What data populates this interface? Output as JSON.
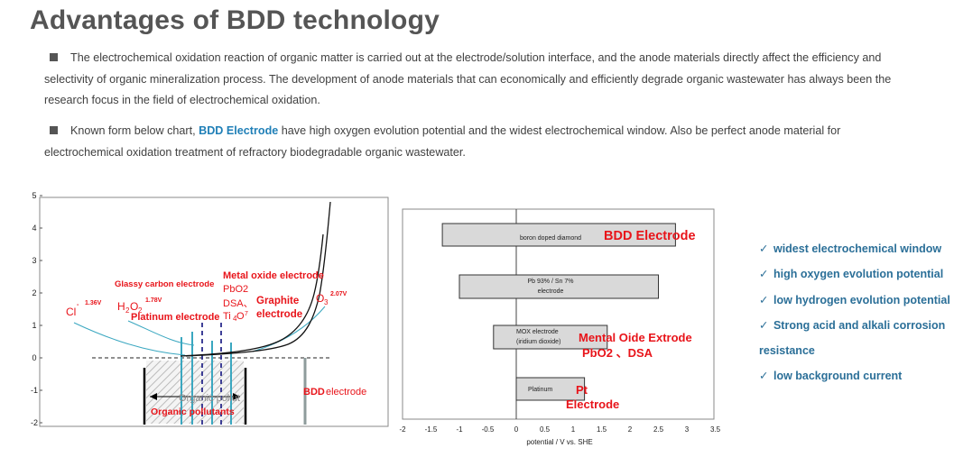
{
  "title": "Advantages of BDD technology",
  "paragraph1": "The electrochemical oxidation reaction of organic matter is carried out at the electrode/solution interface, and the anode materials directly affect the efficiency and selectivity of organic mineralization process. The development of anode materials that can economically and efficiently degrade organic wastewater has always been the research focus in the field of electrochemical oxidation.",
  "paragraph2": {
    "before": "Known form below chart, ",
    "highlight": "BDD Electrode",
    "after": " have high oxygen evolution potential and the widest electrochemical window. Also be perfect anode material for electrochemical oxidation treatment of refractory biodegradable organic wastewater."
  },
  "features": [
    "widest electrochemical window",
    "high oxygen evolution potential",
    "low hydrogen evolution potential",
    "Strong acid and alkali corrosion resistance",
    "low background current"
  ],
  "colors": {
    "title": "#555555",
    "accent_blue": "#1f7fb7",
    "feature_blue": "#2b6f98",
    "label_red": "#e8141a"
  },
  "chart_data": [
    {
      "type": "line",
      "title": "",
      "xlabel": "",
      "ylabel": "",
      "ylim": [
        -2,
        5
      ],
      "y_ticks": [
        "5",
        "4",
        "3",
        "2",
        "1",
        "0",
        "-1",
        "-2"
      ],
      "labels": {
        "cl": "Cl",
        "cl_pot": "1.36V",
        "h2o2": "H",
        "h2o2_pot": "1.78V",
        "glassy": "Glassy carbon electrode",
        "platinum": "Platinum electrode",
        "metal_oxide": "Metal oxide electrode",
        "pbo2": "PbO2",
        "dsa": "DSA、",
        "ti": "Ti",
        "graphite": "Graphite",
        "graphite2": "electrode",
        "o3": "O",
        "o3_pot": "2.07V",
        "organic_gray": "Organic pollut",
        "organic_red": "Organic pollutants",
        "bdd": "BDD",
        "bdd_suffix": "electrode"
      }
    },
    {
      "type": "bar",
      "xlabel": "potential / V vs. SHE",
      "x_ticks": [
        "-2",
        "-1.5",
        "-1",
        "-0.5",
        "0",
        "0.5",
        "1",
        "1.5",
        "2",
        "2.5",
        "3",
        "3.5"
      ],
      "xlim": [
        -2,
        3.5
      ],
      "series": [
        {
          "name": "boron doped diamond",
          "start": -1.3,
          "end": 2.8,
          "annotation": "BDD Electrode"
        },
        {
          "name": "Pb 93% / Sn 7% electrode",
          "start": -1.0,
          "end": 2.5,
          "annotation": ""
        },
        {
          "name": "MOX electrode (iridium dioxide)",
          "start": -0.4,
          "end": 1.6,
          "annotation": "Mental Oide Extrode PbO2 、DSA"
        },
        {
          "name": "Platinum",
          "start": 0.0,
          "end": 1.2,
          "annotation": "Pt Electrode"
        }
      ],
      "annot_lines": {
        "mox1": "MOX electrode",
        "mox2": "(iridium dioxide)",
        "pb1": "Pb 93% / Sn 7%",
        "pb2": "electrode",
        "mental1": "Mental Oide Extrode",
        "mental2": "PbO2 、DSA",
        "pt1": "Pt",
        "pt2": "Electrode"
      }
    }
  ]
}
